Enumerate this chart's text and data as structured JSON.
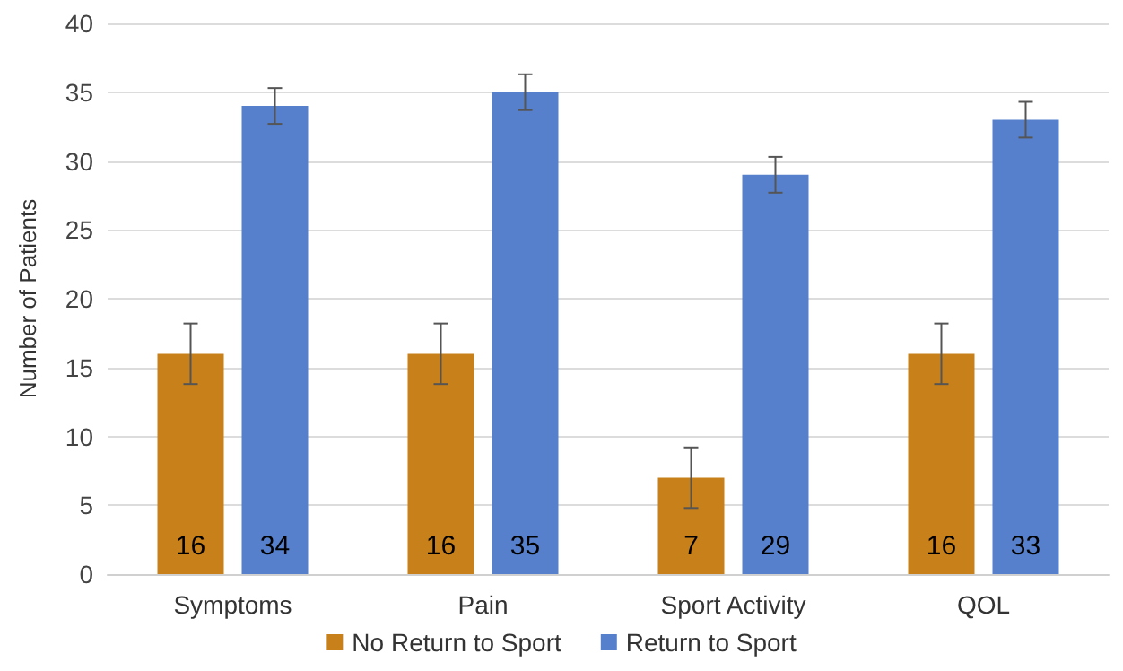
{
  "chart_data": {
    "type": "bar",
    "ylabel": "Number of Patients",
    "categories": [
      "Symptoms",
      "Pain",
      "Sport Activity",
      "QOL"
    ],
    "series": [
      {
        "name": "No Return to Sport",
        "color": "#c8801a",
        "values": [
          16,
          16,
          7,
          16
        ],
        "errors": [
          2.2,
          2.2,
          2.2,
          2.2
        ]
      },
      {
        "name": "Return to Sport",
        "color": "#5680cb",
        "values": [
          34,
          35,
          29,
          33
        ],
        "errors": [
          1.3,
          1.3,
          1.3,
          1.3
        ]
      }
    ],
    "ylim": [
      0,
      40
    ],
    "yticks": [
      0,
      5,
      10,
      15,
      20,
      25,
      30,
      35,
      40
    ],
    "grid": "y",
    "legend": "bottom",
    "data_labels": true
  }
}
